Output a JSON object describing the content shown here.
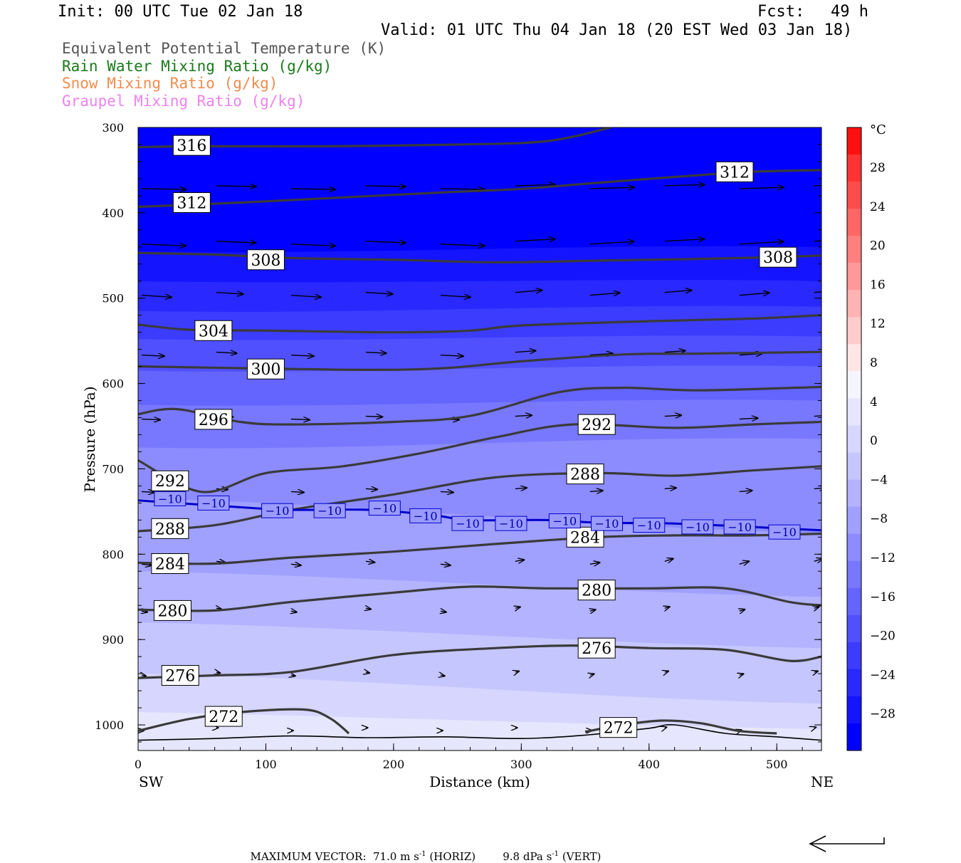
{
  "header": {
    "init": "Init: 00 UTC Tue 02 Jan 18",
    "fcst_label": "Fcst:",
    "fcst_value": "49 h",
    "valid": "Valid: 01 UTC Thu 04 Jan 18 (20 EST Wed 03 Jan 18)"
  },
  "legend": [
    {
      "text": "Equivalent Potential Temperature (K)",
      "color": "#555555"
    },
    {
      "text": "Rain Water Mixing Ratio (g/kg)",
      "color": "#1a7a1a"
    },
    {
      "text": "Snow Mixing Ratio (g/kg)",
      "color": "#f08c4c"
    },
    {
      "text": "Graupel Mixing Ratio (g/kg)",
      "color": "#ee82ee"
    }
  ],
  "footer": {
    "max_vector_label": "MAXIMUM VECTOR:",
    "horiz": "71.0 m s",
    "horiz_unit": "(HORIZ)",
    "vert": "9.8 dPa s",
    "vert_unit": "(VERT)",
    "exponent": "-1"
  },
  "chart_data": {
    "type": "cross-section contour",
    "xlabel": "Distance (km)",
    "ylabel": "Pressure (hPa)",
    "x_ticks": [
      0,
      100,
      200,
      300,
      400,
      500
    ],
    "xlim": [
      0,
      535
    ],
    "y_ticks": [
      300,
      400,
      500,
      600,
      700,
      800,
      900,
      1000
    ],
    "ylim": [
      300,
      1030
    ],
    "left_endpoint": "SW",
    "right_endpoint": "NE",
    "colorbar": {
      "unit": "°C",
      "ticks": [
        28,
        24,
        20,
        16,
        12,
        8,
        4,
        0,
        -4,
        -8,
        -12,
        -16,
        -20,
        -24,
        -28
      ],
      "colors_top_to_bottom": [
        "#ff1010",
        "#ff3333",
        "#ff4d4d",
        "#ff6666",
        "#ff7f7f",
        "#ff9999",
        "#ffb3b3",
        "#ffcccc",
        "#ffe6e6",
        "#f5f5ff",
        "#e6e6ff",
        "#d6d6ff",
        "#c6c6ff",
        "#b3b3ff",
        "#a0a0ff",
        "#8c8cff",
        "#7878ff",
        "#6464ff",
        "#5050ff",
        "#3c3cff",
        "#2828ff",
        "#1414ff",
        "#0000ff"
      ]
    },
    "temperature_bands": [
      {
        "level_top": 300,
        "colors": [
          "#0000ff"
        ]
      },
      {
        "p_left": 445,
        "p_right": 440,
        "color": "#1414ff"
      },
      {
        "p_left": 480,
        "p_right": 480,
        "color": "#2828ff"
      },
      {
        "p_left": 515,
        "p_right": 510,
        "color": "#3c3cff"
      },
      {
        "p_left": 548,
        "p_right": 545,
        "color": "#5050ff"
      },
      {
        "p_left": 585,
        "p_right": 580,
        "color": "#6464ff"
      },
      {
        "p_left": 625,
        "p_right": 620,
        "color": "#7878ff"
      },
      {
        "p_left": 675,
        "p_right": 665,
        "color": "#8c8cff"
      },
      {
        "p_left": 735,
        "p_right": 775,
        "color": "#a0a0ff"
      },
      {
        "p_left": 820,
        "p_right": 850,
        "color": "#b3b3ff"
      },
      {
        "p_left": 880,
        "p_right": 910,
        "color": "#c6c6ff"
      },
      {
        "p_left": 940,
        "p_right": 975,
        "color": "#d6d6ff"
      },
      {
        "p_left": 985,
        "p_right": 1005,
        "color": "#e6e6ff"
      }
    ],
    "theta_e_contours": [
      {
        "label": "316",
        "points": [
          [
            0,
            323
          ],
          [
            50,
            322
          ],
          [
            150,
            322
          ],
          [
            250,
            320
          ],
          [
            320,
            316
          ],
          [
            370,
            300
          ]
        ],
        "labels_at": [
          [
            42,
            321
          ]
        ]
      },
      {
        "label": "312",
        "points": [
          [
            0,
            393
          ],
          [
            80,
            388
          ],
          [
            160,
            382
          ],
          [
            240,
            376
          ],
          [
            300,
            372
          ],
          [
            350,
            366
          ],
          [
            420,
            358
          ],
          [
            480,
            352
          ],
          [
            535,
            350
          ]
        ],
        "labels_at": [
          [
            42,
            388
          ],
          [
            467,
            352
          ]
        ]
      },
      {
        "label": "308",
        "points": [
          [
            0,
            447
          ],
          [
            60,
            449
          ],
          [
            120,
            453
          ],
          [
            200,
            455
          ],
          [
            280,
            458
          ],
          [
            360,
            456
          ],
          [
            440,
            454
          ],
          [
            500,
            452
          ],
          [
            535,
            450
          ]
        ],
        "labels_at": [
          [
            100,
            455
          ],
          [
            501,
            452
          ]
        ]
      },
      {
        "label": "304",
        "points": [
          [
            0,
            531
          ],
          [
            40,
            537
          ],
          [
            100,
            538
          ],
          [
            200,
            540
          ],
          [
            260,
            538
          ],
          [
            300,
            532
          ],
          [
            400,
            527
          ],
          [
            480,
            524
          ],
          [
            535,
            520
          ]
        ],
        "labels_at": [
          [
            59,
            538
          ]
        ]
      },
      {
        "label": "300",
        "points": [
          [
            0,
            580
          ],
          [
            80,
            582
          ],
          [
            180,
            584
          ],
          [
            240,
            582
          ],
          [
            300,
            574
          ],
          [
            380,
            566
          ],
          [
            440,
            565
          ],
          [
            535,
            563
          ]
        ],
        "labels_at": [
          [
            100,
            583
          ]
        ]
      },
      {
        "label": "296",
        "points": [
          [
            0,
            636
          ],
          [
            30,
            630
          ],
          [
            80,
            645
          ],
          [
            120,
            648
          ],
          [
            200,
            645
          ],
          [
            260,
            638
          ],
          [
            330,
            610
          ],
          [
            380,
            605
          ],
          [
            440,
            608
          ],
          [
            535,
            604
          ]
        ],
        "labels_at": [
          [
            59,
            642
          ]
        ]
      },
      {
        "label": "292",
        "points": [
          [
            0,
            690
          ],
          [
            50,
            727
          ],
          [
            100,
            705
          ],
          [
            160,
            697
          ],
          [
            220,
            682
          ],
          [
            280,
            663
          ],
          [
            340,
            648
          ],
          [
            420,
            652
          ],
          [
            480,
            648
          ],
          [
            535,
            645
          ]
        ],
        "labels_at": [
          [
            25,
            714
          ],
          [
            359,
            648
          ]
        ]
      },
      {
        "label": "288",
        "points": [
          [
            0,
            773
          ],
          [
            60,
            766
          ],
          [
            120,
            748
          ],
          [
            200,
            730
          ],
          [
            280,
            710
          ],
          [
            360,
            705
          ],
          [
            420,
            708
          ],
          [
            480,
            702
          ],
          [
            535,
            697
          ]
        ],
        "labels_at": [
          [
            25,
            770
          ],
          [
            350,
            706
          ]
        ]
      },
      {
        "label": "284",
        "points": [
          [
            0,
            810
          ],
          [
            60,
            811
          ],
          [
            120,
            804
          ],
          [
            200,
            797
          ],
          [
            280,
            788
          ],
          [
            360,
            780
          ],
          [
            420,
            778
          ],
          [
            480,
            778
          ],
          [
            535,
            776
          ]
        ],
        "labels_at": [
          [
            25,
            811
          ],
          [
            350,
            780
          ]
        ]
      },
      {
        "label": "280",
        "points": [
          [
            0,
            865
          ],
          [
            60,
            866
          ],
          [
            120,
            856
          ],
          [
            200,
            845
          ],
          [
            260,
            838
          ],
          [
            320,
            840
          ],
          [
            400,
            840
          ],
          [
            460,
            840
          ],
          [
            510,
            856
          ],
          [
            535,
            860
          ]
        ],
        "labels_at": [
          [
            27,
            866
          ],
          [
            359,
            842
          ]
        ]
      },
      {
        "label": "276",
        "points": [
          [
            0,
            945
          ],
          [
            60,
            942
          ],
          [
            120,
            938
          ],
          [
            200,
            918
          ],
          [
            280,
            910
          ],
          [
            340,
            907
          ],
          [
            400,
            910
          ],
          [
            460,
            912
          ],
          [
            510,
            925
          ],
          [
            535,
            920
          ]
        ],
        "labels_at": [
          [
            33,
            942
          ],
          [
            359,
            910
          ]
        ]
      },
      {
        "label": "272",
        "points": [
          [
            0,
            1007
          ],
          [
            40,
            993
          ],
          [
            80,
            985
          ],
          [
            130,
            982
          ],
          [
            150,
            992
          ],
          [
            165,
            1010
          ]
        ],
        "labels_at": [
          [
            67,
            990
          ]
        ]
      },
      {
        "label": "272",
        "points": [
          [
            350,
            1008
          ],
          [
            380,
            1000
          ],
          [
            410,
            995
          ],
          [
            440,
            998
          ],
          [
            470,
            1007
          ],
          [
            500,
            1010
          ]
        ],
        "labels_at": [
          [
            376,
            1003
          ]
        ]
      }
    ],
    "isotherm_minus10": {
      "label": "−10",
      "points": [
        [
          0,
          737
        ],
        [
          40,
          741
        ],
        [
          80,
          745
        ],
        [
          120,
          748
        ],
        [
          180,
          748
        ],
        [
          230,
          754
        ],
        [
          260,
          760
        ],
        [
          320,
          760
        ],
        [
          360,
          763
        ],
        [
          420,
          764
        ],
        [
          480,
          768
        ],
        [
          535,
          772
        ]
      ],
      "labels_at": [
        [
          25,
          735
        ],
        [
          59,
          740
        ],
        [
          109,
          749
        ],
        [
          150,
          749
        ],
        [
          193,
          746
        ],
        [
          225,
          755
        ],
        [
          258,
          764
        ],
        [
          292,
          764
        ],
        [
          334,
          761
        ],
        [
          367,
          764
        ],
        [
          400,
          766
        ],
        [
          438,
          768
        ],
        [
          471,
          768
        ],
        [
          506,
          774
        ]
      ]
    },
    "wind_vectors_note": "grid of black arrows, westerly flow, longest aloft",
    "surface_line": true
  }
}
